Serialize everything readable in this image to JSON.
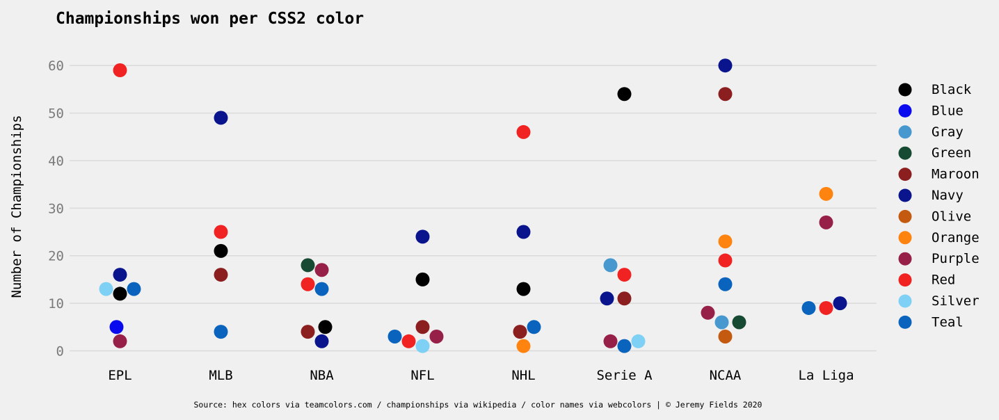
{
  "chart_data": {
    "type": "scatter",
    "title": "Championships won per CSS2 color",
    "ylabel": "Number of Championships",
    "xlabel": "",
    "source": "Source: hex colors via teamcolors.com / championships via wikipedia / color names via webcolors | © Jeremy Fields 2020",
    "categories": [
      "EPL",
      "MLB",
      "NBA",
      "NFL",
      "NHL",
      "Serie A",
      "NCAA",
      "La Liga"
    ],
    "ylim": [
      -3,
      65
    ],
    "yticks": [
      0,
      10,
      20,
      30,
      40,
      50,
      60
    ],
    "grid": true,
    "legend_position": "right",
    "series": [
      {
        "name": "Black",
        "color": "#000000",
        "points": [
          [
            "EPL",
            12
          ],
          [
            "MLB",
            21
          ],
          [
            "NBA",
            5
          ],
          [
            "NFL",
            15
          ],
          [
            "NHL",
            13
          ],
          [
            "Serie A",
            54
          ]
        ]
      },
      {
        "name": "Blue",
        "color": "#0a0aee",
        "points": [
          [
            "EPL",
            5
          ]
        ]
      },
      {
        "name": "Gray",
        "color": "#4898d0",
        "points": [
          [
            "Serie A",
            18
          ],
          [
            "NCAA",
            6
          ]
        ]
      },
      {
        "name": "Green",
        "color": "#174a33",
        "points": [
          [
            "NBA",
            18
          ],
          [
            "NCAA",
            6
          ]
        ]
      },
      {
        "name": "Maroon",
        "color": "#8b1e1e",
        "points": [
          [
            "MLB",
            16
          ],
          [
            "NBA",
            4
          ],
          [
            "NFL",
            5
          ],
          [
            "NHL",
            4
          ],
          [
            "Serie A",
            11
          ],
          [
            "NCAA",
            54
          ]
        ]
      },
      {
        "name": "Navy",
        "color": "#0a148c",
        "points": [
          [
            "EPL",
            16
          ],
          [
            "MLB",
            49
          ],
          [
            "NBA",
            2
          ],
          [
            "NFL",
            24
          ],
          [
            "NHL",
            25
          ],
          [
            "Serie A",
            11
          ],
          [
            "NCAA",
            60
          ],
          [
            "La Liga",
            10
          ]
        ]
      },
      {
        "name": "Olive",
        "color": "#c45a10",
        "points": [
          [
            "NCAA",
            3
          ]
        ]
      },
      {
        "name": "Orange",
        "color": "#ff840f",
        "points": [
          [
            "NHL",
            1
          ],
          [
            "NCAA",
            23
          ],
          [
            "La Liga",
            33
          ]
        ]
      },
      {
        "name": "Purple",
        "color": "#972048",
        "points": [
          [
            "EPL",
            2
          ],
          [
            "NBA",
            17
          ],
          [
            "NFL",
            3
          ],
          [
            "Serie A",
            2
          ],
          [
            "NCAA",
            8
          ],
          [
            "La Liga",
            27
          ]
        ]
      },
      {
        "name": "Red",
        "color": "#f02222",
        "points": [
          [
            "EPL",
            59
          ],
          [
            "MLB",
            25
          ],
          [
            "NBA",
            14
          ],
          [
            "NFL",
            2
          ],
          [
            "NHL",
            46
          ],
          [
            "Serie A",
            16
          ],
          [
            "NCAA",
            19
          ],
          [
            "La Liga",
            9
          ]
        ]
      },
      {
        "name": "Silver",
        "color": "#7fd0f5",
        "points": [
          [
            "EPL",
            13
          ],
          [
            "NFL",
            1
          ],
          [
            "Serie A",
            2
          ]
        ]
      },
      {
        "name": "Teal",
        "color": "#0a64be",
        "points": [
          [
            "EPL",
            13
          ],
          [
            "MLB",
            4
          ],
          [
            "NBA",
            13
          ],
          [
            "NFL",
            3
          ],
          [
            "NHL",
            5
          ],
          [
            "Serie A",
            1
          ],
          [
            "NCAA",
            14
          ],
          [
            "La Liga",
            9
          ]
        ]
      }
    ]
  }
}
